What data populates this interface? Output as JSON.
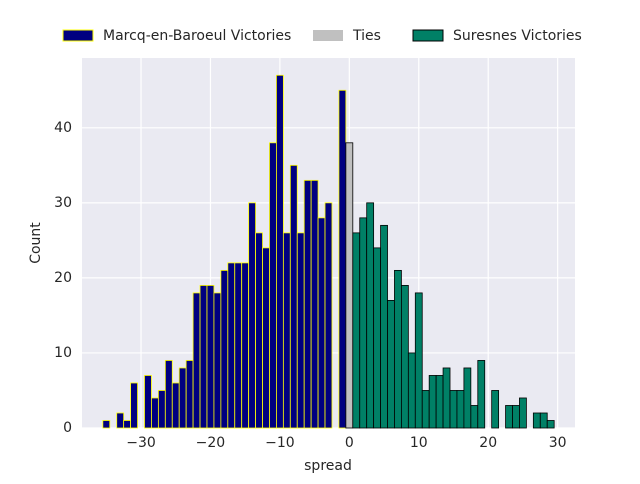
{
  "chart_data": {
    "type": "histogram",
    "xlabel": "spread",
    "ylabel": "Count",
    "xlim": [
      -38.5,
      32.5
    ],
    "ylim": [
      0,
      49.3
    ],
    "xticks": [
      {
        "value": -30,
        "label": "−30"
      },
      {
        "value": -20,
        "label": "−20"
      },
      {
        "value": -10,
        "label": "−10"
      },
      0,
      10,
      20,
      30
    ],
    "yticks": [
      0,
      10,
      20,
      30,
      40
    ],
    "grid": true,
    "legend": "top",
    "series": [
      {
        "name": "Marcq-en-Baroeul Victories",
        "color": "#000080",
        "edgecolor": "#ffff00",
        "bins": [
          -35.5,
          -34.5,
          -33.5,
          -32.5,
          -31.5,
          -30.5,
          -29.5,
          -28.5,
          -27.5,
          -26.5,
          -25.5,
          -24.5,
          -23.5,
          -22.5,
          -21.5,
          -20.5,
          -19.5,
          -18.5,
          -17.5,
          -16.5,
          -15.5,
          -14.5,
          -13.5,
          -12.5,
          -11.5,
          -10.5,
          -9.5,
          -8.5,
          -7.5,
          -6.5,
          -5.5,
          -4.5,
          -3.5,
          -2.5,
          -1.5,
          -0.5
        ],
        "values": [
          1,
          0,
          2,
          1,
          6,
          0,
          7,
          4,
          5,
          9,
          6,
          8,
          9,
          18,
          19,
          19,
          18,
          21,
          22,
          22,
          22,
          30,
          26,
          24,
          38,
          47,
          26,
          35,
          26,
          33,
          33,
          28,
          30,
          0,
          45
        ]
      },
      {
        "name": "Ties",
        "color": "#c0c0c0",
        "edgecolor": "#000000",
        "bins": [
          -0.5,
          0.5
        ],
        "values": [
          38
        ]
      },
      {
        "name": "Suresnes Victories",
        "color": "#008066",
        "edgecolor": "#000000",
        "bins": [
          0.5,
          1.5,
          2.5,
          3.5,
          4.5,
          5.5,
          6.5,
          7.5,
          8.5,
          9.5,
          10.5,
          11.5,
          12.5,
          13.5,
          14.5,
          15.5,
          16.5,
          17.5,
          18.5,
          19.5,
          20.5,
          21.5,
          22.5,
          23.5,
          24.5,
          25.5,
          26.5,
          27.5,
          28.5,
          29.5
        ],
        "values": [
          26,
          28,
          30,
          24,
          27,
          17,
          21,
          19,
          10,
          18,
          5,
          7,
          7,
          8,
          5,
          5,
          8,
          3,
          9,
          0,
          5,
          0,
          3,
          3,
          4,
          0,
          2,
          2,
          1
        ]
      }
    ]
  }
}
